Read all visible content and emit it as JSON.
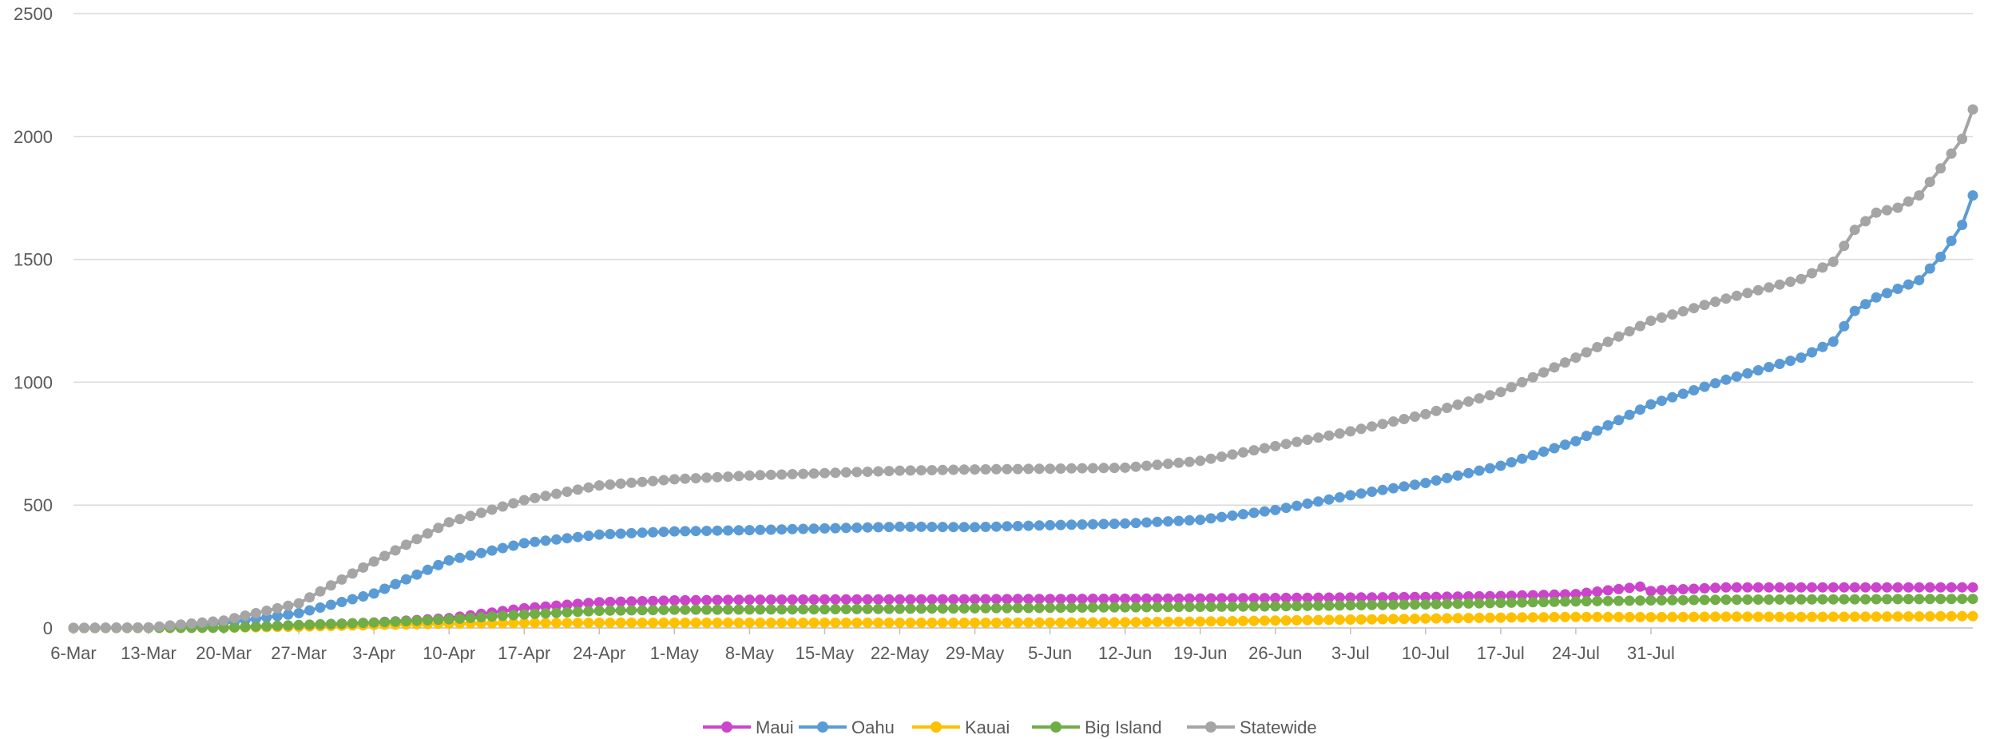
{
  "chart_data": {
    "type": "line",
    "title": "",
    "xlabel": "",
    "ylabel": "",
    "ylim": [
      0,
      2500
    ],
    "yticks": [
      0,
      500,
      1000,
      1500,
      2000,
      2500
    ],
    "grid": true,
    "legend": "bottom",
    "x_start": "6-Mar",
    "x_end": "31-Jul",
    "xticks": [
      "6-Mar",
      "13-Mar",
      "20-Mar",
      "27-Mar",
      "3-Apr",
      "10-Apr",
      "17-Apr",
      "24-Apr",
      "1-May",
      "8-May",
      "15-May",
      "22-May",
      "29-May",
      "5-Jun",
      "12-Jun",
      "19-Jun",
      "26-Jun",
      "3-Jul",
      "10-Jul",
      "17-Jul",
      "24-Jul",
      "31-Jul"
    ],
    "series": [
      {
        "name": "Maui",
        "color": "#CC44CC",
        "points": [
          [
            0,
            0
          ],
          [
            14,
            1
          ],
          [
            21,
            10
          ],
          [
            28,
            22
          ],
          [
            35,
            40
          ],
          [
            42,
            80
          ],
          [
            49,
            105
          ],
          [
            56,
            112
          ],
          [
            63,
            115
          ],
          [
            70,
            116
          ],
          [
            77,
            116
          ],
          [
            84,
            117
          ],
          [
            91,
            118
          ],
          [
            98,
            119
          ],
          [
            105,
            120
          ],
          [
            112,
            122
          ],
          [
            119,
            124
          ],
          [
            126,
            126
          ],
          [
            133,
            130
          ],
          [
            140,
            138
          ],
          [
            147,
            150
          ],
          [
            154,
            165
          ],
          [
            147,
            152
          ],
          [
            146,
            168
          ]
        ]
      },
      {
        "name": "Oahu",
        "color": "#5B9BD5",
        "points": [
          [
            0,
            0
          ],
          [
            7,
            2
          ],
          [
            14,
            20
          ],
          [
            21,
            60
          ],
          [
            28,
            140
          ],
          [
            35,
            275
          ],
          [
            42,
            345
          ],
          [
            49,
            380
          ],
          [
            56,
            393
          ],
          [
            63,
            398
          ],
          [
            70,
            405
          ],
          [
            77,
            412
          ],
          [
            84,
            410
          ],
          [
            91,
            418
          ],
          [
            98,
            425
          ],
          [
            105,
            440
          ],
          [
            112,
            480
          ],
          [
            119,
            540
          ],
          [
            126,
            590
          ],
          [
            133,
            660
          ],
          [
            140,
            760
          ],
          [
            147,
            910
          ],
          [
            154,
            1010
          ],
          [
            161,
            1100
          ],
          [
            164,
            1165
          ],
          [
            166,
            1290
          ],
          [
            168,
            1345
          ],
          [
            170,
            1380
          ],
          [
            172,
            1415
          ],
          [
            174,
            1510
          ],
          [
            176,
            1640
          ],
          [
            177,
            1760
          ]
        ]
      },
      {
        "name": "Kauai",
        "color": "#FFC000",
        "points": [
          [
            0,
            0
          ],
          [
            14,
            1
          ],
          [
            21,
            5
          ],
          [
            28,
            12
          ],
          [
            35,
            18
          ],
          [
            42,
            20
          ],
          [
            49,
            21
          ],
          [
            56,
            21
          ],
          [
            63,
            21
          ],
          [
            70,
            21
          ],
          [
            77,
            21
          ],
          [
            84,
            21
          ],
          [
            91,
            22
          ],
          [
            98,
            23
          ],
          [
            105,
            26
          ],
          [
            112,
            30
          ],
          [
            119,
            34
          ],
          [
            126,
            38
          ],
          [
            133,
            42
          ],
          [
            140,
            45
          ],
          [
            147,
            44
          ],
          [
            154,
            46
          ],
          [
            161,
            45
          ],
          [
            168,
            46
          ],
          [
            177,
            48
          ]
        ]
      },
      {
        "name": "Big Island",
        "color": "#70AD47",
        "points": [
          [
            0,
            0
          ],
          [
            14,
            1
          ],
          [
            21,
            12
          ],
          [
            28,
            22
          ],
          [
            35,
            35
          ],
          [
            42,
            55
          ],
          [
            49,
            70
          ],
          [
            56,
            74
          ],
          [
            63,
            75
          ],
          [
            70,
            76
          ],
          [
            77,
            78
          ],
          [
            84,
            80
          ],
          [
            91,
            82
          ],
          [
            98,
            84
          ],
          [
            105,
            86
          ],
          [
            112,
            88
          ],
          [
            119,
            92
          ],
          [
            126,
            96
          ],
          [
            133,
            102
          ],
          [
            140,
            108
          ],
          [
            147,
            112
          ],
          [
            154,
            115
          ],
          [
            161,
            116
          ],
          [
            168,
            117
          ],
          [
            177,
            118
          ]
        ]
      },
      {
        "name": "Statewide",
        "color": "#A5A5A5",
        "points": [
          [
            0,
            0
          ],
          [
            7,
            2
          ],
          [
            14,
            30
          ],
          [
            21,
            100
          ],
          [
            28,
            270
          ],
          [
            35,
            430
          ],
          [
            42,
            520
          ],
          [
            49,
            580
          ],
          [
            56,
            605
          ],
          [
            63,
            620
          ],
          [
            70,
            630
          ],
          [
            77,
            640
          ],
          [
            84,
            645
          ],
          [
            91,
            648
          ],
          [
            98,
            652
          ],
          [
            105,
            680
          ],
          [
            112,
            740
          ],
          [
            119,
            800
          ],
          [
            126,
            870
          ],
          [
            133,
            960
          ],
          [
            140,
            1100
          ],
          [
            147,
            1250
          ],
          [
            154,
            1340
          ],
          [
            161,
            1420
          ],
          [
            164,
            1490
          ],
          [
            166,
            1620
          ],
          [
            168,
            1690
          ],
          [
            170,
            1710
          ],
          [
            172,
            1760
          ],
          [
            174,
            1870
          ],
          [
            176,
            1990
          ],
          [
            177,
            2110
          ]
        ]
      }
    ]
  }
}
